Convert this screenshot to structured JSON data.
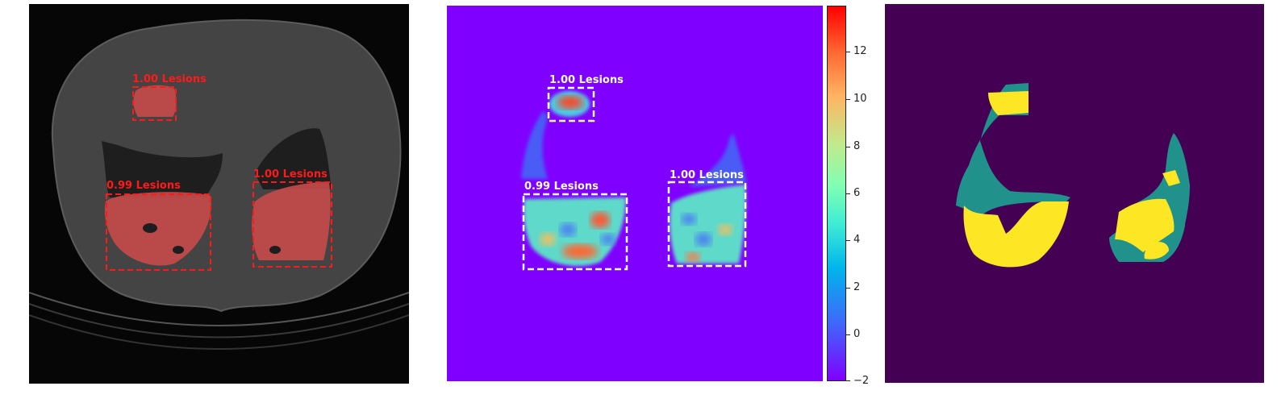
{
  "panels": {
    "ct": {
      "labels": [
        "1.00 Lesions",
        "0.99 Lesions",
        "1.00 Lesions"
      ],
      "box_color": "#ff1a1a"
    },
    "heatmap": {
      "labels": [
        "1.00 Lesions",
        "0.99 Lesions",
        "1.00 Lesions"
      ],
      "box_color": "#ffffff"
    },
    "segmentation": {
      "colors": {
        "background": "#440154",
        "class1": "#21918c",
        "class2": "#fde725"
      }
    }
  },
  "colorbar": {
    "ticks": [
      "12",
      "10",
      "8",
      "6",
      "4",
      "2",
      "0",
      "−2"
    ],
    "range": [
      -2,
      14
    ]
  }
}
